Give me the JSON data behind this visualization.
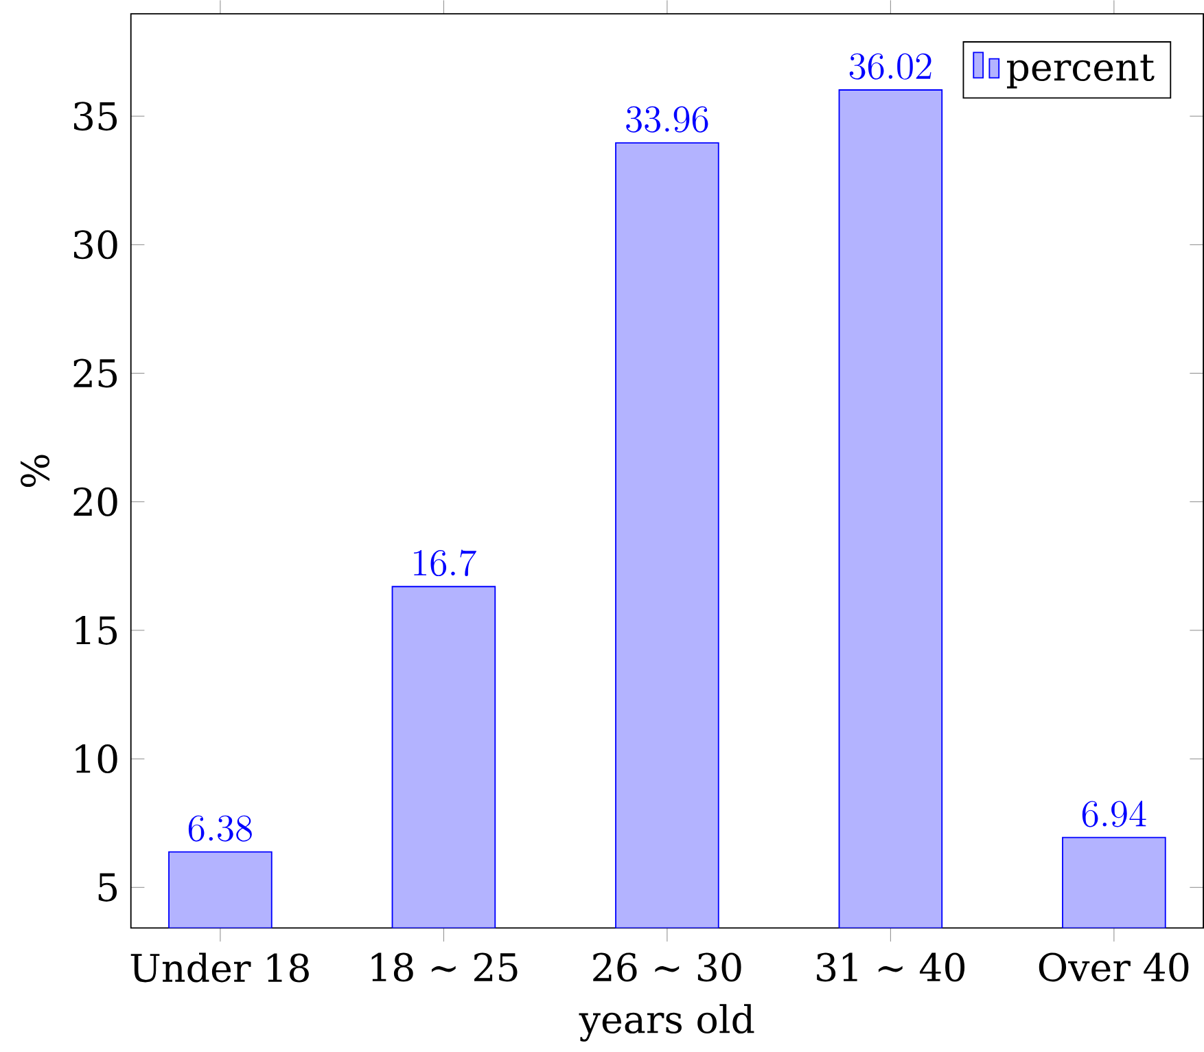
{
  "chart_data": {
    "type": "bar",
    "xlabel": "years old",
    "ylabel": "%",
    "categories": [
      "Under 18",
      "18 ∼ 25",
      "26 ∼ 30",
      "31 ∼ 40",
      "Over 40"
    ],
    "series": [
      {
        "name": "percent",
        "color": "#b3b3ff",
        "values": [
          6.38,
          16.7,
          33.96,
          36.02,
          6.94
        ]
      }
    ],
    "ylim": [
      3.42,
      38.98
    ],
    "yticks": [
      5,
      10,
      15,
      20,
      25,
      30,
      35
    ],
    "data_labels": true,
    "legend": "top right",
    "grid": false
  }
}
